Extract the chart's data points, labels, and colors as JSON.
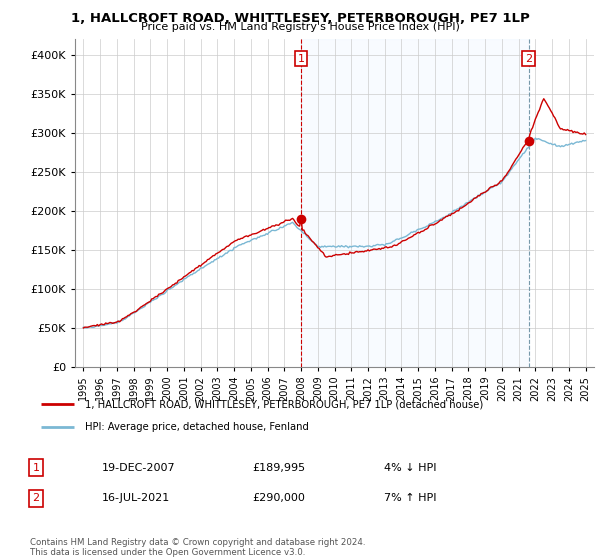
{
  "title": "1, HALLCROFT ROAD, WHITTLESEY, PETERBOROUGH, PE7 1LP",
  "subtitle": "Price paid vs. HM Land Registry's House Price Index (HPI)",
  "legend_line1": "1, HALLCROFT ROAD, WHITTLESEY, PETERBOROUGH, PE7 1LP (detached house)",
  "legend_line2": "HPI: Average price, detached house, Fenland",
  "transaction1_date": "19-DEC-2007",
  "transaction1_price": "£189,995",
  "transaction1_hpi": "4% ↓ HPI",
  "transaction2_date": "16-JUL-2021",
  "transaction2_price": "£290,000",
  "transaction2_hpi": "7% ↑ HPI",
  "footnote": "Contains HM Land Registry data © Crown copyright and database right 2024.\nThis data is licensed under the Open Government Licence v3.0.",
  "color_red": "#cc0000",
  "color_blue": "#7bb8d4",
  "color_vline1": "#cc0000",
  "color_vline2": "#7799aa",
  "ylim_min": 0,
  "ylim_max": 420000,
  "yticks": [
    0,
    50000,
    100000,
    150000,
    200000,
    250000,
    300000,
    350000,
    400000
  ],
  "transaction1_x": 2008.0,
  "transaction1_y": 189995,
  "transaction2_x": 2021.6,
  "transaction2_y": 290000,
  "xmin": 1994.5,
  "xmax": 2025.5,
  "background_color": "#ffffff",
  "shade_color": "#ddeeff"
}
